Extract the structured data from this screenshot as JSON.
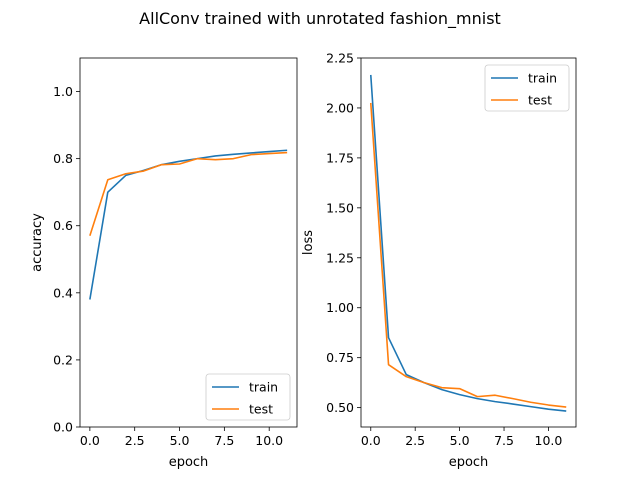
{
  "suptitle": "AllConv trained with unrotated fashion_mnist",
  "chart_data": [
    {
      "type": "line",
      "xlabel": "epoch",
      "ylabel": "accuracy",
      "xlim": [
        -0.55,
        11.55
      ],
      "ylim": [
        0.0,
        1.1
      ],
      "xticks": [
        0.0,
        2.5,
        5.0,
        7.5,
        10.0
      ],
      "xtick_labels": [
        "0.0",
        "2.5",
        "5.0",
        "7.5",
        "10.0"
      ],
      "yticks": [
        0.0,
        0.2,
        0.4,
        0.6,
        0.8,
        1.0
      ],
      "ytick_labels": [
        "0.0",
        "0.2",
        "0.4",
        "0.6",
        "0.8",
        "1.0"
      ],
      "legend": "lower-right",
      "grid": false,
      "x": [
        0,
        1,
        2,
        3,
        4,
        5,
        6,
        7,
        8,
        9,
        10,
        11
      ],
      "series": [
        {
          "name": "train",
          "color": "#1f77b4",
          "values": [
            0.38,
            0.7,
            0.75,
            0.765,
            0.782,
            0.792,
            0.8,
            0.808,
            0.813,
            0.817,
            0.821,
            0.825
          ]
        },
        {
          "name": "test",
          "color": "#ff7f0e",
          "values": [
            0.57,
            0.737,
            0.755,
            0.763,
            0.782,
            0.784,
            0.8,
            0.797,
            0.8,
            0.812,
            0.815,
            0.818
          ]
        }
      ]
    },
    {
      "type": "line",
      "xlabel": "epoch",
      "ylabel": "loss",
      "xlim": [
        -0.55,
        11.55
      ],
      "ylim": [
        0.403,
        2.25
      ],
      "xticks": [
        0.0,
        2.5,
        5.0,
        7.5,
        10.0
      ],
      "xtick_labels": [
        "0.0",
        "2.5",
        "5.0",
        "7.5",
        "10.0"
      ],
      "yticks": [
        0.5,
        0.75,
        1.0,
        1.25,
        1.5,
        1.75,
        2.0,
        2.25
      ],
      "ytick_labels": [
        "0.50",
        "0.75",
        "1.00",
        "1.25",
        "1.50",
        "1.75",
        "2.00",
        "2.25"
      ],
      "legend": "top-right",
      "grid": false,
      "x": [
        0,
        1,
        2,
        3,
        4,
        5,
        6,
        7,
        8,
        9,
        10,
        11
      ],
      "series": [
        {
          "name": "train",
          "color": "#1f77b4",
          "values": [
            2.165,
            0.85,
            0.665,
            0.625,
            0.59,
            0.565,
            0.545,
            0.53,
            0.518,
            0.505,
            0.492,
            0.483
          ]
        },
        {
          "name": "test",
          "color": "#ff7f0e",
          "values": [
            2.025,
            0.715,
            0.655,
            0.625,
            0.6,
            0.595,
            0.555,
            0.562,
            0.545,
            0.527,
            0.513,
            0.503
          ]
        }
      ]
    }
  ]
}
